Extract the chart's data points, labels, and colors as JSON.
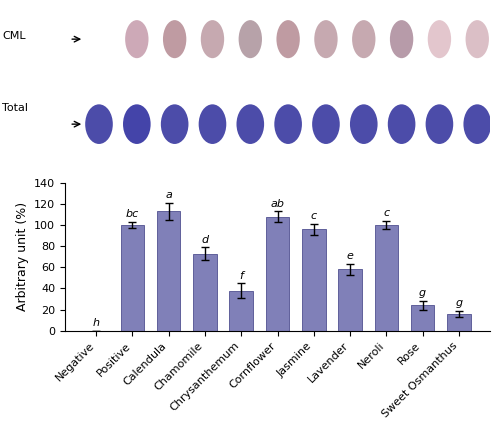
{
  "categories": [
    "Negative",
    "Positive",
    "Calendula",
    "Chamomile",
    "Chrysanthemum",
    "Cornflower",
    "Jasmine",
    "Lavender",
    "Neroli",
    "Rose",
    "Sweet Osmanthus"
  ],
  "values": [
    0,
    100,
    113,
    73,
    38,
    108,
    96,
    58,
    100,
    24,
    16
  ],
  "errors": [
    0,
    3,
    8,
    6,
    7,
    5,
    5,
    5,
    4,
    4,
    3
  ],
  "sig_labels": [
    "h",
    "bc",
    "a",
    "d",
    "f",
    "ab",
    "c",
    "e",
    "c",
    "g",
    "g"
  ],
  "bar_color": "#8080b8",
  "bar_edge_color": "#505090",
  "ylabel": "Arbitrary unit (%)",
  "ylim": [
    0,
    140
  ],
  "yticks": [
    0,
    20,
    40,
    60,
    80,
    100,
    120,
    140
  ],
  "background_color": "#ffffff",
  "cml_label": "CML",
  "total_label": "Total",
  "band_colors_cml": [
    "#ffffff",
    "#c8a0b0",
    "#b89098",
    "#c0a0a8",
    "#b098a0",
    "#b89098",
    "#c0a0a8",
    "#c0a0a8",
    "#b090a0",
    "#e0c0c8",
    "#d8b8c0"
  ],
  "band_colors_total": [
    "#3838a0",
    "#3030a0",
    "#3838a0",
    "#3838a0",
    "#3838a0",
    "#3838a0",
    "#3838a0",
    "#3838a0",
    "#3838a0",
    "#3838a0",
    "#3838a0"
  ],
  "total_bg": "#9090cc"
}
